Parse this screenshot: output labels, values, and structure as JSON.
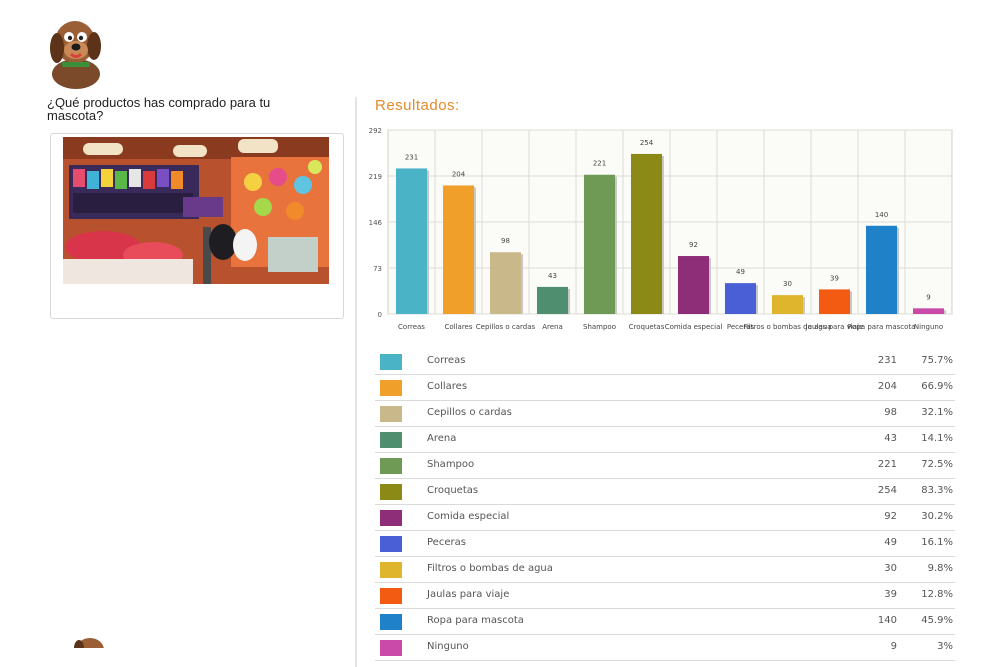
{
  "question": "¿Qué productos has comprado para tu mascota?",
  "results_title": "Resultados:",
  "chart_data": {
    "type": "bar",
    "title": "",
    "xlabel": "",
    "ylabel": "",
    "ylim": [
      0,
      292
    ],
    "yticks": [
      0,
      73,
      146,
      219,
      292
    ],
    "grid": true,
    "categories": [
      "Correas",
      "Collares",
      "Cepillos o cardas",
      "Arena",
      "Shampoo",
      "Croquetas",
      "Comida especial",
      "Peceras",
      "Filtros o bombas de agua",
      "Jaulas para viaje",
      "Ropa para mascota",
      "Ninguno"
    ],
    "values": [
      231,
      204,
      98,
      43,
      221,
      254,
      92,
      49,
      30,
      39,
      140,
      9
    ],
    "percents": [
      "75.7%",
      "66.9%",
      "32.1%",
      "14.1%",
      "72.5%",
      "83.3%",
      "30.2%",
      "16.1%",
      "9.8%",
      "12.8%",
      "45.9%",
      "3%"
    ],
    "colors": [
      "#4ab3c6",
      "#f0a02a",
      "#c9b98a",
      "#4f8f6f",
      "#6f9a55",
      "#8c8a17",
      "#8e2e78",
      "#4a5ed6",
      "#e0b52e",
      "#f35b12",
      "#1f82c9",
      "#c94aa8"
    ]
  }
}
